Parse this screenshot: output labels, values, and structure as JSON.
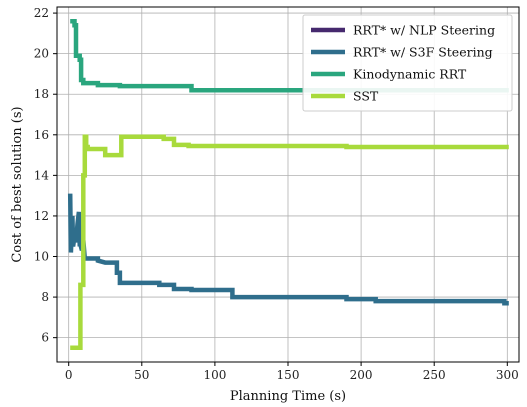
{
  "chart_data": {
    "type": "line",
    "title": "",
    "xlabel": "Planning Time (s)",
    "ylabel": "Cost of best solution (s)",
    "xlim": [
      -8,
      308
    ],
    "ylim": [
      4.8,
      22.3
    ],
    "xticks": [
      0,
      50,
      100,
      150,
      200,
      250,
      300
    ],
    "yticks": [
      6,
      8,
      10,
      12,
      14,
      16,
      18,
      20,
      22
    ],
    "grid": true,
    "legend_position": "top-right",
    "series": [
      {
        "name": "RRT* w/ NLP Steering",
        "color": "#46296e",
        "points": []
      },
      {
        "name": "RRT* w/ S3F Steering",
        "color": "#2f6e8c",
        "points": [
          [
            1.0,
            13.1
          ],
          [
            1.5,
            10.2
          ],
          [
            2.5,
            12.0
          ],
          [
            3.0,
            10.5
          ],
          [
            4.0,
            11.0
          ],
          [
            5.0,
            10.7
          ],
          [
            6.0,
            11.6
          ],
          [
            7.0,
            12.2
          ],
          [
            7.5,
            10.6
          ],
          [
            8.0,
            10.6
          ],
          [
            9.0,
            10.3
          ],
          [
            10.0,
            10.8
          ],
          [
            11.0,
            9.9
          ],
          [
            20.0,
            9.9
          ],
          [
            20.0,
            9.8
          ],
          [
            25.0,
            9.7
          ],
          [
            33.0,
            9.7
          ],
          [
            33.0,
            9.2
          ],
          [
            35.0,
            9.2
          ],
          [
            35.0,
            8.7
          ],
          [
            62.0,
            8.7
          ],
          [
            62.0,
            8.6
          ],
          [
            72.0,
            8.6
          ],
          [
            72.0,
            8.4
          ],
          [
            84.0,
            8.4
          ],
          [
            84.0,
            8.35
          ],
          [
            112.0,
            8.35
          ],
          [
            112.0,
            8.0
          ],
          [
            190.0,
            8.0
          ],
          [
            190.0,
            7.9
          ],
          [
            210.0,
            7.9
          ],
          [
            210.0,
            7.8
          ],
          [
            298.0,
            7.8
          ],
          [
            298.0,
            7.7
          ],
          [
            301.0,
            7.7
          ]
        ]
      },
      {
        "name": "Kinodynamic RRT",
        "color": "#2aa67e",
        "points": [
          [
            1.0,
            21.6
          ],
          [
            4.0,
            21.6
          ],
          [
            4.0,
            21.4
          ],
          [
            5.0,
            21.4
          ],
          [
            5.0,
            19.9
          ],
          [
            7.5,
            19.9
          ],
          [
            7.5,
            19.7
          ],
          [
            8.5,
            19.7
          ],
          [
            8.5,
            18.7
          ],
          [
            10.0,
            18.7
          ],
          [
            10.0,
            18.55
          ],
          [
            20.0,
            18.55
          ],
          [
            20.0,
            18.45
          ],
          [
            35.0,
            18.45
          ],
          [
            35.0,
            18.4
          ],
          [
            84.0,
            18.4
          ],
          [
            84.0,
            18.2
          ],
          [
            301.0,
            18.2
          ]
        ]
      },
      {
        "name": "SST",
        "color": "#a8da3c",
        "points": [
          [
            1.0,
            5.5
          ],
          [
            8.0,
            5.5
          ],
          [
            8.0,
            8.6
          ],
          [
            10.0,
            8.6
          ],
          [
            10.0,
            14.0
          ],
          [
            11.0,
            14.0
          ],
          [
            11.0,
            15.9
          ],
          [
            12.0,
            15.9
          ],
          [
            12.0,
            15.4
          ],
          [
            13.0,
            15.4
          ],
          [
            13.0,
            15.3
          ],
          [
            25.0,
            15.3
          ],
          [
            25.0,
            15.0
          ],
          [
            36.0,
            15.0
          ],
          [
            36.0,
            15.9
          ],
          [
            65.0,
            15.9
          ],
          [
            65.0,
            15.8
          ],
          [
            72.0,
            15.8
          ],
          [
            72.0,
            15.5
          ],
          [
            82.0,
            15.5
          ],
          [
            82.0,
            15.45
          ],
          [
            190.0,
            15.45
          ],
          [
            190.0,
            15.4
          ],
          [
            301.0,
            15.4
          ]
        ]
      }
    ]
  }
}
